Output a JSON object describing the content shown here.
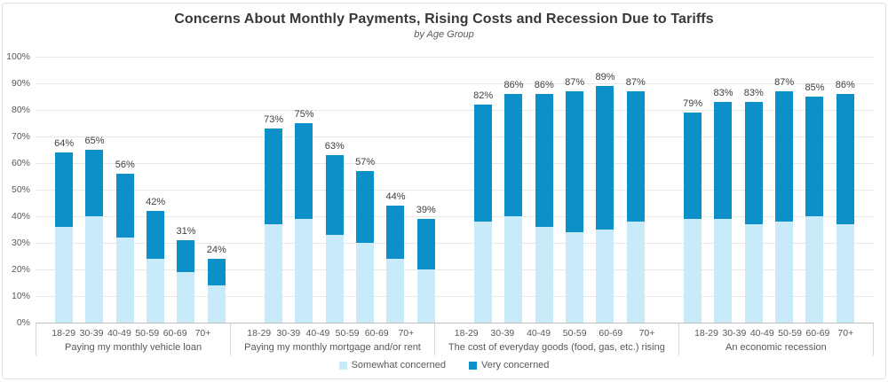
{
  "title": "Concerns About Monthly Payments, Rising Costs and Recession Due to Tariffs",
  "subtitle": "by Age Group",
  "legend": {
    "somewhat_label": "Somewhat concerned",
    "very_label": "Very concerned"
  },
  "colors": {
    "somewhat": "#c9eaf9",
    "very": "#0d8fc7",
    "gridline": "#e8e8e8",
    "axis_line": "#bfbfbf",
    "text_gray": "#595959",
    "label_dark": "#404040"
  },
  "chart_data": {
    "type": "bar",
    "stacked": true,
    "unit": "%",
    "ylim": [
      0,
      100
    ],
    "grid": true,
    "legend_position": "bottom",
    "y_tick_labels": [
      "100%",
      "90%",
      "80%",
      "70%",
      "60%",
      "50%",
      "40%",
      "30%",
      "20%",
      "10%",
      "0%"
    ],
    "age_categories": [
      "18-29",
      "30-39",
      "40-49",
      "50-59",
      "60-69",
      "70+"
    ],
    "series_names": [
      "Somewhat concerned",
      "Very concerned"
    ],
    "groups": [
      {
        "label": "Paying my monthly vehicle loan",
        "bars": [
          {
            "age": "18-29",
            "somewhat": 36,
            "very": 28,
            "total": 64,
            "total_label": "64%"
          },
          {
            "age": "30-39",
            "somewhat": 40,
            "very": 25,
            "total": 65,
            "total_label": "65%"
          },
          {
            "age": "40-49",
            "somewhat": 32,
            "very": 24,
            "total": 56,
            "total_label": "56%"
          },
          {
            "age": "50-59",
            "somewhat": 24,
            "very": 18,
            "total": 42,
            "total_label": "42%"
          },
          {
            "age": "60-69",
            "somewhat": 19,
            "very": 12,
            "total": 31,
            "total_label": "31%"
          },
          {
            "age": "70+",
            "somewhat": 14,
            "very": 10,
            "total": 24,
            "total_label": "24%"
          }
        ]
      },
      {
        "label": "Paying my monthly mortgage and/or rent",
        "bars": [
          {
            "age": "18-29",
            "somewhat": 37,
            "very": 36,
            "total": 73,
            "total_label": "73%"
          },
          {
            "age": "30-39",
            "somewhat": 39,
            "very": 36,
            "total": 75,
            "total_label": "75%"
          },
          {
            "age": "40-49",
            "somewhat": 33,
            "very": 30,
            "total": 63,
            "total_label": "63%"
          },
          {
            "age": "50-59",
            "somewhat": 30,
            "very": 27,
            "total": 57,
            "total_label": "57%"
          },
          {
            "age": "60-69",
            "somewhat": 24,
            "very": 20,
            "total": 44,
            "total_label": "44%"
          },
          {
            "age": "70+",
            "somewhat": 20,
            "very": 19,
            "total": 39,
            "total_label": "39%"
          }
        ]
      },
      {
        "label": "The cost of everyday goods (food, gas, etc.) rising",
        "bars": [
          {
            "age": "18-29",
            "somewhat": 38,
            "very": 44,
            "total": 82,
            "total_label": "82%"
          },
          {
            "age": "30-39",
            "somewhat": 40,
            "very": 46,
            "total": 86,
            "total_label": "86%"
          },
          {
            "age": "40-49",
            "somewhat": 36,
            "very": 50,
            "total": 86,
            "total_label": "86%"
          },
          {
            "age": "50-59",
            "somewhat": 34,
            "very": 53,
            "total": 87,
            "total_label": "87%"
          },
          {
            "age": "60-69",
            "somewhat": 35,
            "very": 54,
            "total": 89,
            "total_label": "89%"
          },
          {
            "age": "70+",
            "somewhat": 38,
            "very": 49,
            "total": 87,
            "total_label": "87%"
          }
        ]
      },
      {
        "label": "An economic recession",
        "bars": [
          {
            "age": "18-29",
            "somewhat": 39,
            "very": 40,
            "total": 79,
            "total_label": "79%"
          },
          {
            "age": "30-39",
            "somewhat": 39,
            "very": 44,
            "total": 83,
            "total_label": "83%"
          },
          {
            "age": "40-49",
            "somewhat": 37,
            "very": 46,
            "total": 83,
            "total_label": "83%"
          },
          {
            "age": "50-59",
            "somewhat": 38,
            "very": 49,
            "total": 87,
            "total_label": "87%"
          },
          {
            "age": "60-69",
            "somewhat": 40,
            "very": 45,
            "total": 85,
            "total_label": "85%"
          },
          {
            "age": "70+",
            "somewhat": 37,
            "very": 49,
            "total": 86,
            "total_label": "86%"
          }
        ]
      }
    ]
  }
}
